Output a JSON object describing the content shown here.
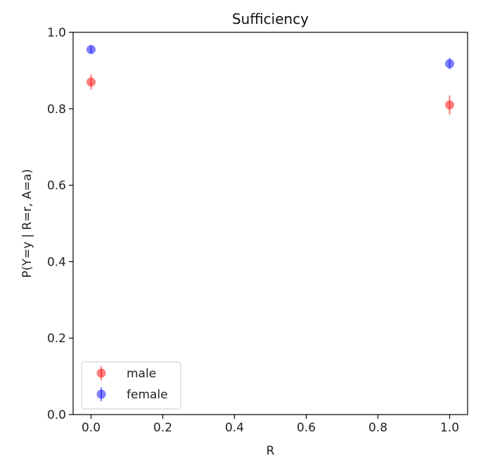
{
  "chart_data": {
    "type": "scatter",
    "title": "Sufficiency",
    "xlabel": "R",
    "ylabel": "P(Y=y | R=r, A=a)",
    "xlim": [
      -0.05,
      1.05
    ],
    "ylim": [
      0.0,
      1.0
    ],
    "xticks": [
      "0.0",
      "0.2",
      "0.4",
      "0.6",
      "0.8",
      "1.0"
    ],
    "yticks": [
      "0.0",
      "0.2",
      "0.4",
      "0.6",
      "0.8",
      "1.0"
    ],
    "grid": false,
    "legend_position": "bottom-left",
    "series": [
      {
        "name": "male",
        "color": "#ff0000",
        "points": [
          {
            "x": 0.0,
            "y": 0.87,
            "err": 0.02
          },
          {
            "x": 1.0,
            "y": 0.81,
            "err": 0.025
          }
        ]
      },
      {
        "name": "female",
        "color": "#0000ff",
        "points": [
          {
            "x": 0.0,
            "y": 0.955,
            "err": 0.01
          },
          {
            "x": 1.0,
            "y": 0.918,
            "err": 0.015
          }
        ]
      }
    ]
  }
}
